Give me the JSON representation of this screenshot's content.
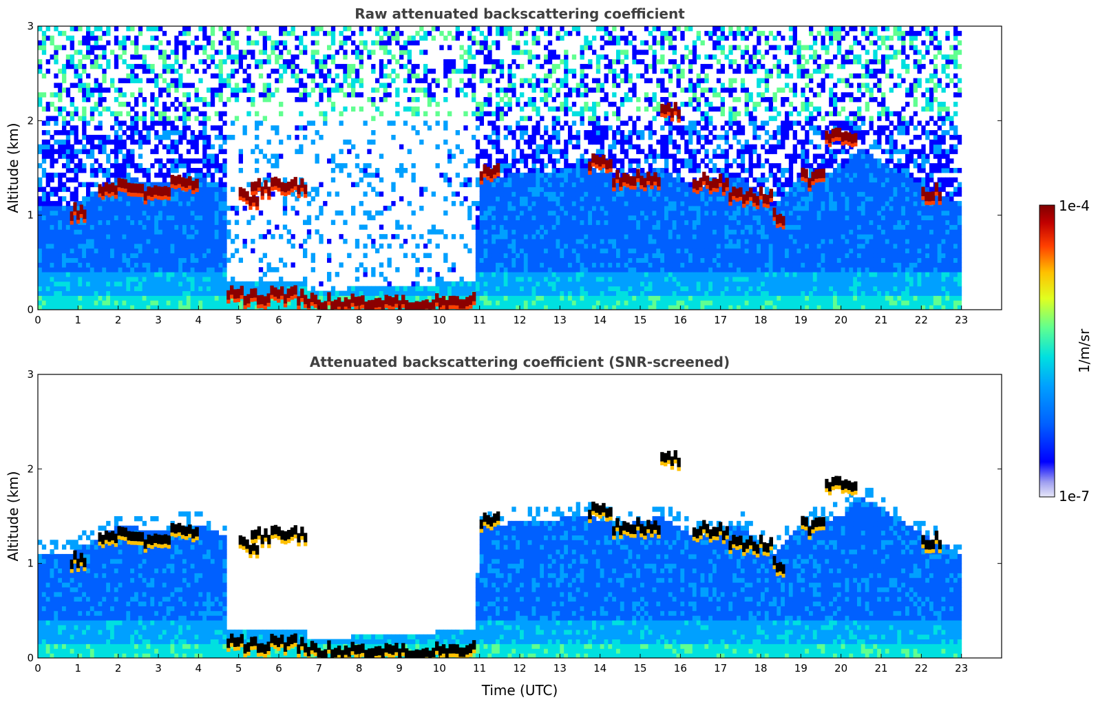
{
  "chart_data": [
    {
      "type": "heatmap",
      "title": "Raw attenuated backscattering coefficient",
      "xlabel": "",
      "ylabel": "Altitude (km)",
      "xlim": [
        0,
        24
      ],
      "ylim": [
        0,
        3
      ],
      "xticks": [
        "0",
        "1",
        "2",
        "3",
        "4",
        "5",
        "6",
        "7",
        "8",
        "9",
        "10",
        "11",
        "12",
        "13",
        "14",
        "15",
        "16",
        "17",
        "18",
        "19",
        "20",
        "21",
        "22",
        "23"
      ],
      "yticks": [
        "0",
        "1",
        "2",
        "3"
      ],
      "data_end_time": 23,
      "boundary_layer_top_km": [
        [
          0,
          1.1
        ],
        [
          0.8,
          1.1
        ],
        [
          2,
          1.4
        ],
        [
          3,
          1.35
        ],
        [
          4,
          1.4
        ],
        [
          4.7,
          1.3
        ],
        [
          4.7,
          0.3
        ],
        [
          6.7,
          0.3
        ],
        [
          6.7,
          0.2
        ],
        [
          10.9,
          0.3
        ],
        [
          11,
          1.4
        ],
        [
          13.7,
          1.5
        ],
        [
          14.5,
          1.4
        ],
        [
          15.5,
          1.5
        ],
        [
          16.3,
          1.3
        ],
        [
          17.5,
          1.4
        ],
        [
          18.3,
          1.1
        ],
        [
          19,
          1.4
        ],
        [
          20,
          1.5
        ],
        [
          20.5,
          1.7
        ],
        [
          22.3,
          1.25
        ],
        [
          23,
          1.1
        ]
      ],
      "strong_layer_segments_km": [
        {
          "t0": 0.8,
          "t1": 1.2,
          "z": 1.05
        },
        {
          "t0": 1.5,
          "t1": 2.3,
          "z": 1.3
        },
        {
          "t0": 2.3,
          "t1": 3.3,
          "z": 1.25
        },
        {
          "t0": 3.3,
          "t1": 4.0,
          "z": 1.35
        },
        {
          "t0": 5.0,
          "t1": 5.5,
          "z": 1.2
        },
        {
          "t0": 5.3,
          "t1": 6.7,
          "z": 1.3
        },
        {
          "t0": 4.7,
          "t1": 6.7,
          "z": 0.15
        },
        {
          "t0": 6.7,
          "t1": 10.9,
          "z": 0.08
        },
        {
          "t0": 11.0,
          "t1": 11.5,
          "z": 1.45
        },
        {
          "t0": 13.7,
          "t1": 14.3,
          "z": 1.55
        },
        {
          "t0": 14.3,
          "t1": 15.5,
          "z": 1.4
        },
        {
          "t0": 15.5,
          "t1": 16.0,
          "z": 2.1
        },
        {
          "t0": 16.3,
          "t1": 17.2,
          "z": 1.35
        },
        {
          "t0": 17.2,
          "t1": 18.3,
          "z": 1.2
        },
        {
          "t0": 18.3,
          "t1": 18.6,
          "z": 1.0
        },
        {
          "t0": 19.0,
          "t1": 19.6,
          "z": 1.4
        },
        {
          "t0": 19.6,
          "t1": 20.4,
          "z": 1.85
        },
        {
          "t0": 22.0,
          "t1": 22.5,
          "z": 1.25
        }
      ]
    },
    {
      "type": "heatmap",
      "title": "Attenuated backscattering coefficient (SNR-screened)",
      "xlabel": "Time (UTC)",
      "ylabel": "Altitude (km)",
      "xlim": [
        0,
        24
      ],
      "ylim": [
        0,
        3
      ],
      "xticks": [
        "0",
        "1",
        "2",
        "3",
        "4",
        "5",
        "6",
        "7",
        "8",
        "9",
        "10",
        "11",
        "12",
        "13",
        "14",
        "15",
        "16",
        "17",
        "18",
        "19",
        "20",
        "21",
        "22",
        "23"
      ],
      "yticks": [
        "0",
        "1",
        "2",
        "3"
      ],
      "data_end_time": 23
    }
  ],
  "colorbar": {
    "label": "1/m/sr",
    "max_label": "1e-4",
    "min_label": "1e-7",
    "colors": [
      "#e8e8f8",
      "#a0a0f0",
      "#0000ff",
      "#0060ff",
      "#00a0ff",
      "#00e0e0",
      "#60ff90",
      "#e0ff20",
      "#ffc000",
      "#ff4000",
      "#c00000",
      "#800000"
    ]
  }
}
